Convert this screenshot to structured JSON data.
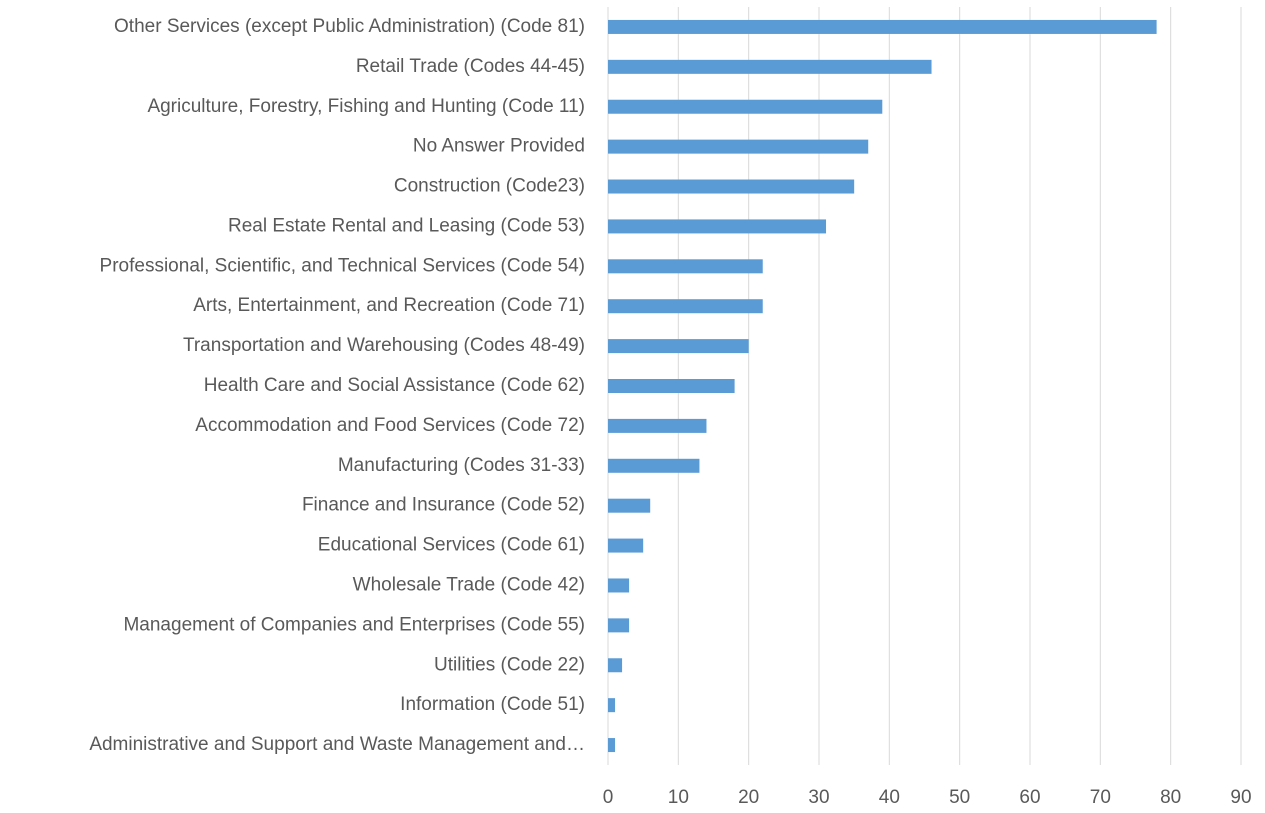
{
  "chart_data": {
    "type": "hbar",
    "categories": [
      "Other Services (except Public Administration) (Code 81)",
      "Retail Trade (Codes 44-45)",
      "Agriculture, Forestry, Fishing and Hunting (Code 11)",
      "No Answer Provided",
      "Construction (Code23)",
      "Real Estate Rental and Leasing (Code 53)",
      "Professional, Scientific, and Technical Services (Code 54)",
      "Arts, Entertainment, and Recreation (Code 71)",
      "Transportation and Warehousing (Codes 48-49)",
      "Health Care and Social Assistance (Code 62)",
      "Accommodation and Food Services (Code 72)",
      "Manufacturing (Codes 31-33)",
      "Finance and Insurance (Code 52)",
      "Educational Services (Code 61)",
      "Wholesale Trade (Code 42)",
      "Management of Companies and Enterprises (Code 55)",
      "Utilities (Code 22)",
      "Information (Code 51)",
      "Administrative and Support and Waste Management and…"
    ],
    "values": [
      78,
      46,
      39,
      37,
      35,
      31,
      22,
      22,
      20,
      18,
      14,
      13,
      6,
      5,
      3,
      3,
      2,
      1,
      1
    ],
    "color": "#5b9bd5",
    "xlim": [
      0,
      90
    ],
    "xticks": [
      0,
      10,
      20,
      30,
      40,
      50,
      60,
      70,
      80,
      90
    ],
    "grid": true
  }
}
